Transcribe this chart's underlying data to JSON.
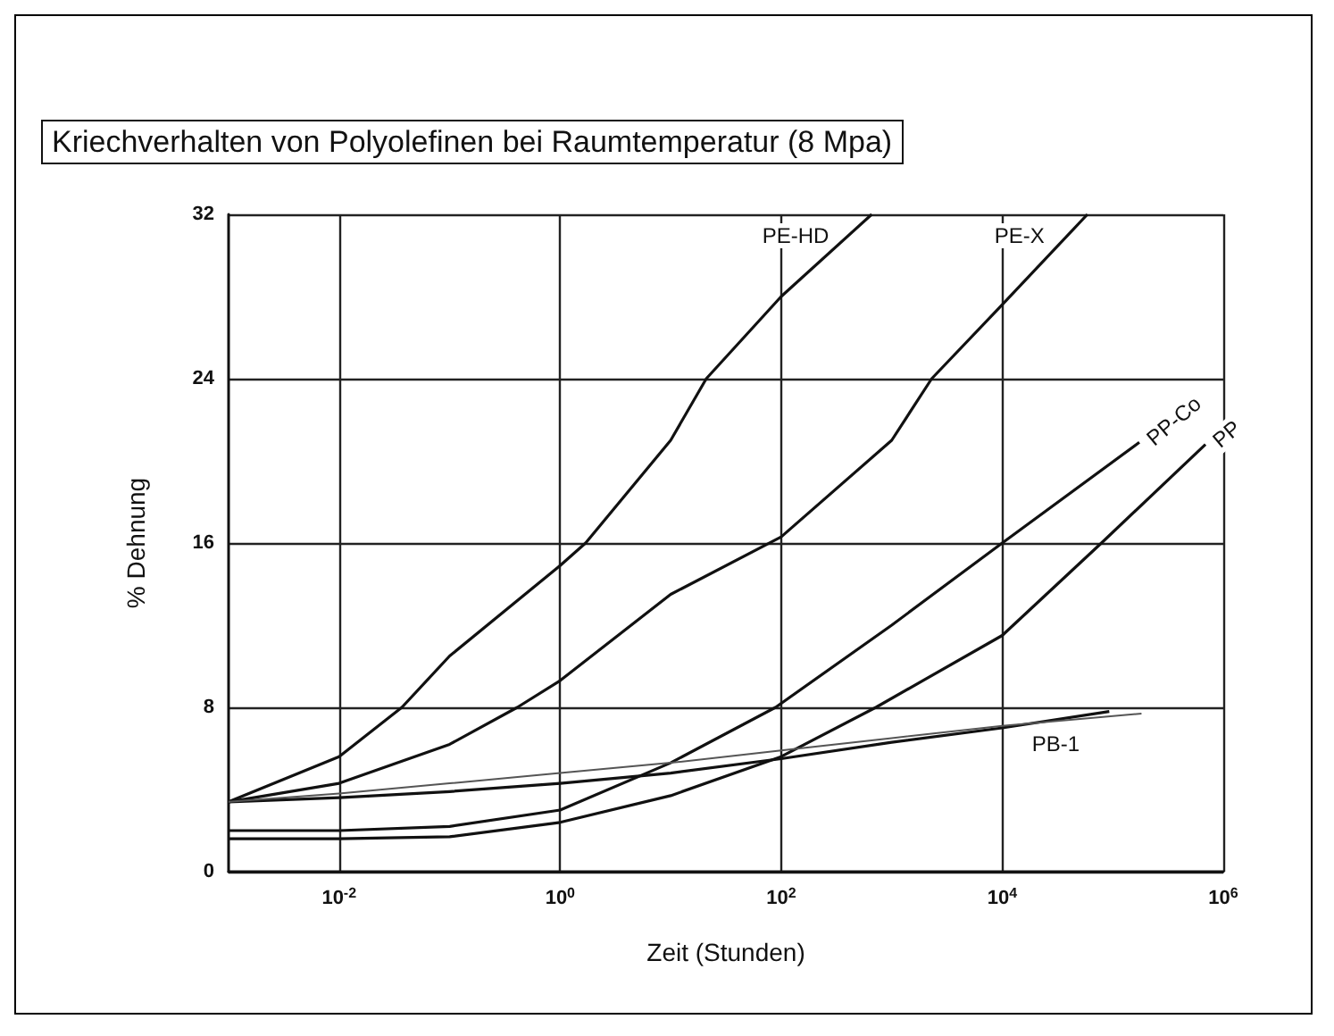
{
  "chart_data": {
    "type": "line",
    "title": "Kriechverhalten von Polyolefinen bei Raumtemperatur (8 Mpa)",
    "xlabel": "Zeit (Stunden)",
    "ylabel": "% Dehnung",
    "log": "x",
    "grid": true,
    "legend": false,
    "marker": "none",
    "line_style": "solid",
    "xlim": [
      0.001,
      1000000
    ],
    "xticks": [
      {
        "value": 0.01,
        "label": "10$^{-2}$"
      },
      {
        "value": 1,
        "label": "10$^{0}$"
      },
      {
        "value": 100,
        "label": "10$^{2}$"
      },
      {
        "value": 10000,
        "label": "10$^{4}$"
      },
      {
        "value": 1000000,
        "label": "10$^{6}$"
      }
    ],
    "ylim": [
      0,
      32
    ],
    "yticks": [
      0,
      8,
      16,
      24,
      32
    ],
    "series": [
      {
        "name": "PE-HD",
        "color": "#111111",
        "x": [
          0.001,
          0.01,
          0.037,
          0.1,
          1,
          1.7,
          10,
          21,
          100,
          660
        ],
        "values": [
          3.4,
          5.6,
          8,
          10.5,
          14.9,
          16,
          21,
          24,
          28,
          32
        ]
      },
      {
        "name": "PE-X",
        "color": "#111111",
        "x": [
          0.001,
          0.01,
          0.1,
          0.41,
          1,
          10,
          100,
          1000,
          2300,
          10000,
          59000
        ],
        "values": [
          3.4,
          4.3,
          6.2,
          8,
          9.3,
          13.5,
          16.3,
          21,
          24,
          27.6,
          32
        ]
      },
      {
        "name": "PP-Co",
        "color": "#111111",
        "x": [
          0.001,
          0.01,
          0.1,
          1,
          10,
          89,
          1000,
          10000,
          174000
        ],
        "values": [
          2.0,
          2.0,
          2.2,
          3.0,
          5.3,
          8,
          12,
          16,
          20.9
        ]
      },
      {
        "name": "PP",
        "color": "#111111",
        "x": [
          0.001,
          0.01,
          0.1,
          1,
          10,
          100,
          720,
          10000,
          79000,
          690000
        ],
        "values": [
          1.6,
          1.6,
          1.7,
          2.4,
          3.7,
          5.6,
          8,
          11.5,
          16,
          20.8
        ]
      },
      {
        "name": "PB-1",
        "color": "#111111",
        "x": [
          0.001,
          0.01,
          0.1,
          1,
          10,
          100,
          1000,
          10000,
          93000
        ],
        "values": [
          3.4,
          3.6,
          3.9,
          4.3,
          4.8,
          5.5,
          6.3,
          7.0,
          7.8
        ]
      },
      {
        "color": "#555555",
        "x": [
          0.001,
          0.01,
          0.1,
          1,
          10,
          100,
          1000,
          10000,
          182000
        ],
        "values": [
          3.4,
          3.8,
          4.3,
          4.8,
          5.3,
          5.9,
          6.5,
          7.1,
          7.7
        ]
      }
    ]
  }
}
